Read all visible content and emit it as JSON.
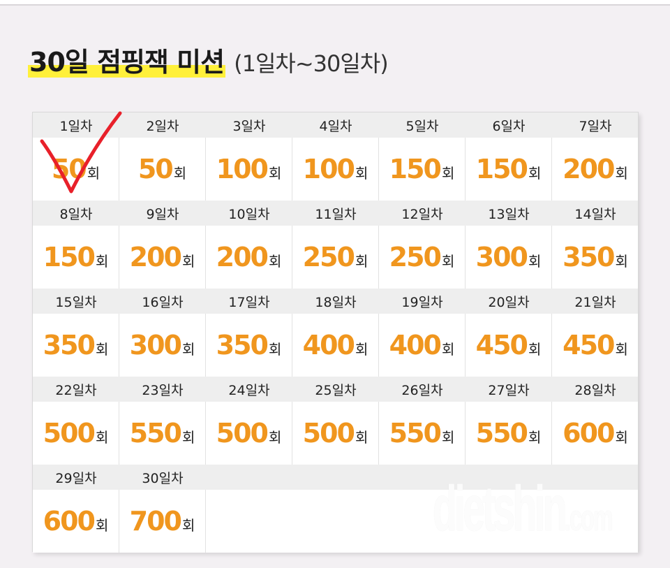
{
  "title": {
    "main": "30일 점핑잭 미션",
    "sub": "(1일차~30일차)"
  },
  "unit": "회",
  "days": [
    {
      "label": "1일차",
      "count": "50"
    },
    {
      "label": "2일차",
      "count": "50"
    },
    {
      "label": "3일차",
      "count": "100"
    },
    {
      "label": "4일차",
      "count": "100"
    },
    {
      "label": "5일차",
      "count": "150"
    },
    {
      "label": "6일차",
      "count": "150"
    },
    {
      "label": "7일차",
      "count": "200"
    },
    {
      "label": "8일차",
      "count": "150"
    },
    {
      "label": "9일차",
      "count": "200"
    },
    {
      "label": "10일차",
      "count": "200"
    },
    {
      "label": "11일차",
      "count": "250"
    },
    {
      "label": "12일차",
      "count": "250"
    },
    {
      "label": "13일차",
      "count": "300"
    },
    {
      "label": "14일차",
      "count": "350"
    },
    {
      "label": "15일차",
      "count": "350"
    },
    {
      "label": "16일차",
      "count": "300"
    },
    {
      "label": "17일차",
      "count": "350"
    },
    {
      "label": "18일차",
      "count": "400"
    },
    {
      "label": "19일차",
      "count": "400"
    },
    {
      "label": "20일차",
      "count": "450"
    },
    {
      "label": "21일차",
      "count": "450"
    },
    {
      "label": "22일차",
      "count": "500"
    },
    {
      "label": "23일차",
      "count": "550"
    },
    {
      "label": "24일차",
      "count": "500"
    },
    {
      "label": "25일차",
      "count": "500"
    },
    {
      "label": "26일차",
      "count": "550"
    },
    {
      "label": "27일차",
      "count": "550"
    },
    {
      "label": "28일차",
      "count": "600"
    },
    {
      "label": "29일차",
      "count": "600"
    },
    {
      "label": "30일차",
      "count": "700"
    }
  ],
  "watermark": {
    "main": "dietshin",
    "suffix": ".com"
  },
  "colors": {
    "accent": "#f0961e",
    "highlight": "#fff03a",
    "check": "#e8202a"
  }
}
